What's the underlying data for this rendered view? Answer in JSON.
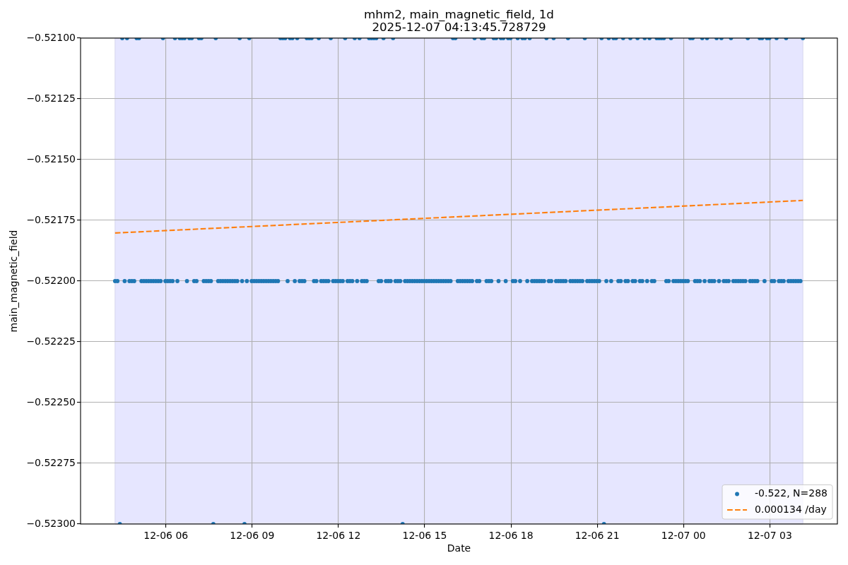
{
  "chart_data": {
    "type": "scatter",
    "title": "mhm2, main_magnetic_field, 1d",
    "subtitle": "2025-12-07 04:13:45.728729",
    "xlabel": "Date",
    "ylabel": "main_magnetic_field",
    "xlim": [
      "2025-12-06T03:02",
      "2025-12-07T05:21"
    ],
    "xticks": [
      {
        "value": "2025-12-06T06:00",
        "label": "12-06 06"
      },
      {
        "value": "2025-12-06T09:00",
        "label": "12-06 09"
      },
      {
        "value": "2025-12-06T12:00",
        "label": "12-06 12"
      },
      {
        "value": "2025-12-06T15:00",
        "label": "12-06 15"
      },
      {
        "value": "2025-12-06T18:00",
        "label": "12-06 18"
      },
      {
        "value": "2025-12-06T21:00",
        "label": "12-06 21"
      },
      {
        "value": "2025-12-07T00:00",
        "label": "12-07 00"
      },
      {
        "value": "2025-12-07T03:00",
        "label": "12-07 03"
      }
    ],
    "ylim": [
      -0.523,
      -0.521
    ],
    "yticks": [
      {
        "value": -0.523,
        "label": "−0.52300"
      },
      {
        "value": -0.52275,
        "label": "−0.52275"
      },
      {
        "value": -0.5225,
        "label": "−0.52250"
      },
      {
        "value": -0.52225,
        "label": "−0.52225"
      },
      {
        "value": -0.522,
        "label": "−0.52200"
      },
      {
        "value": -0.52175,
        "label": "−0.52175"
      },
      {
        "value": -0.5215,
        "label": "−0.52150"
      },
      {
        "value": -0.52125,
        "label": "−0.52125"
      },
      {
        "value": -0.521,
        "label": "−0.52100"
      }
    ],
    "grid": true,
    "legend": "bottom right",
    "bands": [
      {
        "axis": "x",
        "from": "2025-12-06T04:14",
        "to": "2025-12-07T04:09",
        "color": "#e6e6ff"
      }
    ],
    "series": [
      {
        "name": "-0.522, N=288",
        "color": "#1f77b4",
        "marker": "circle",
        "x": [
          "2025-12-06T04:14",
          "2025-12-06T04:19",
          "2025-12-06T04:24",
          "2025-12-06T04:29",
          "2025-12-06T04:34",
          "2025-12-06T04:39",
          "2025-12-06T04:44",
          "2025-12-06T04:49",
          "2025-12-06T04:54",
          "2025-12-06T04:59",
          "2025-12-06T05:04",
          "2025-12-06T05:09",
          "2025-12-06T05:14",
          "2025-12-06T05:19",
          "2025-12-06T05:24",
          "2025-12-06T05:29",
          "2025-12-06T05:34",
          "2025-12-06T05:39",
          "2025-12-06T05:44",
          "2025-12-06T05:49",
          "2025-12-06T05:54",
          "2025-12-06T05:59",
          "2025-12-06T06:04",
          "2025-12-06T06:09",
          "2025-12-06T06:14",
          "2025-12-06T06:19",
          "2025-12-06T06:24",
          "2025-12-06T06:29",
          "2025-12-06T06:34",
          "2025-12-06T06:39",
          "2025-12-06T06:44",
          "2025-12-06T06:49",
          "2025-12-06T06:54",
          "2025-12-06T06:59",
          "2025-12-06T07:04",
          "2025-12-06T07:09",
          "2025-12-06T07:14",
          "2025-12-06T07:19",
          "2025-12-06T07:24",
          "2025-12-06T07:29",
          "2025-12-06T07:34",
          "2025-12-06T07:39",
          "2025-12-06T07:44",
          "2025-12-06T07:49",
          "2025-12-06T07:54",
          "2025-12-06T07:59",
          "2025-12-06T08:04",
          "2025-12-06T08:09",
          "2025-12-06T08:14",
          "2025-12-06T08:19",
          "2025-12-06T08:24",
          "2025-12-06T08:29",
          "2025-12-06T08:34",
          "2025-12-06T08:39",
          "2025-12-06T08:44",
          "2025-12-06T08:49",
          "2025-12-06T08:54",
          "2025-12-06T08:59",
          "2025-12-06T09:04",
          "2025-12-06T09:09",
          "2025-12-06T09:14",
          "2025-12-06T09:19",
          "2025-12-06T09:24",
          "2025-12-06T09:29",
          "2025-12-06T09:34",
          "2025-12-06T09:39",
          "2025-12-06T09:44",
          "2025-12-06T09:49",
          "2025-12-06T09:54",
          "2025-12-06T09:59",
          "2025-12-06T10:04",
          "2025-12-06T10:09",
          "2025-12-06T10:14",
          "2025-12-06T10:19",
          "2025-12-06T10:24",
          "2025-12-06T10:29",
          "2025-12-06T10:34",
          "2025-12-06T10:39",
          "2025-12-06T10:44",
          "2025-12-06T10:49",
          "2025-12-06T10:54",
          "2025-12-06T10:59",
          "2025-12-06T11:04",
          "2025-12-06T11:09",
          "2025-12-06T11:14",
          "2025-12-06T11:19",
          "2025-12-06T11:24",
          "2025-12-06T11:29",
          "2025-12-06T11:34",
          "2025-12-06T11:39",
          "2025-12-06T11:44",
          "2025-12-06T11:49",
          "2025-12-06T11:54",
          "2025-12-06T11:59",
          "2025-12-06T12:04",
          "2025-12-06T12:09",
          "2025-12-06T12:14",
          "2025-12-06T12:19",
          "2025-12-06T12:24",
          "2025-12-06T12:29",
          "2025-12-06T12:34",
          "2025-12-06T12:39",
          "2025-12-06T12:44",
          "2025-12-06T12:49",
          "2025-12-06T12:54",
          "2025-12-06T12:59",
          "2025-12-06T13:04",
          "2025-12-06T13:09",
          "2025-12-06T13:14",
          "2025-12-06T13:19",
          "2025-12-06T13:24",
          "2025-12-06T13:29",
          "2025-12-06T13:34",
          "2025-12-06T13:39",
          "2025-12-06T13:44",
          "2025-12-06T13:49",
          "2025-12-06T13:54",
          "2025-12-06T13:59",
          "2025-12-06T14:04",
          "2025-12-06T14:09",
          "2025-12-06T14:14",
          "2025-12-06T14:19",
          "2025-12-06T14:24",
          "2025-12-06T14:29",
          "2025-12-06T14:34",
          "2025-12-06T14:39",
          "2025-12-06T14:44",
          "2025-12-06T14:49",
          "2025-12-06T14:54",
          "2025-12-06T14:59",
          "2025-12-06T15:04",
          "2025-12-06T15:09",
          "2025-12-06T15:14",
          "2025-12-06T15:19",
          "2025-12-06T15:24",
          "2025-12-06T15:29",
          "2025-12-06T15:34",
          "2025-12-06T15:39",
          "2025-12-06T15:44",
          "2025-12-06T15:49",
          "2025-12-06T15:54",
          "2025-12-06T15:59",
          "2025-12-06T16:04",
          "2025-12-06T16:09",
          "2025-12-06T16:14",
          "2025-12-06T16:19",
          "2025-12-06T16:24",
          "2025-12-06T16:29",
          "2025-12-06T16:34",
          "2025-12-06T16:39",
          "2025-12-06T16:44",
          "2025-12-06T16:49",
          "2025-12-06T16:54",
          "2025-12-06T16:59",
          "2025-12-06T17:04",
          "2025-12-06T17:09",
          "2025-12-06T17:14",
          "2025-12-06T17:19",
          "2025-12-06T17:24",
          "2025-12-06T17:29",
          "2025-12-06T17:34",
          "2025-12-06T17:39",
          "2025-12-06T17:44",
          "2025-12-06T17:49",
          "2025-12-06T17:54",
          "2025-12-06T17:59",
          "2025-12-06T18:04",
          "2025-12-06T18:09",
          "2025-12-06T18:14",
          "2025-12-06T18:19",
          "2025-12-06T18:24",
          "2025-12-06T18:29",
          "2025-12-06T18:34",
          "2025-12-06T18:39",
          "2025-12-06T18:44",
          "2025-12-06T18:49",
          "2025-12-06T18:54",
          "2025-12-06T18:59",
          "2025-12-06T19:04",
          "2025-12-06T19:09",
          "2025-12-06T19:14",
          "2025-12-06T19:19",
          "2025-12-06T19:24",
          "2025-12-06T19:29",
          "2025-12-06T19:34",
          "2025-12-06T19:39",
          "2025-12-06T19:44",
          "2025-12-06T19:49",
          "2025-12-06T19:54",
          "2025-12-06T19:59",
          "2025-12-06T20:04",
          "2025-12-06T20:09",
          "2025-12-06T20:14",
          "2025-12-06T20:19",
          "2025-12-06T20:24",
          "2025-12-06T20:29",
          "2025-12-06T20:34",
          "2025-12-06T20:39",
          "2025-12-06T20:44",
          "2025-12-06T20:49",
          "2025-12-06T20:54",
          "2025-12-06T20:59",
          "2025-12-06T21:04",
          "2025-12-06T21:09",
          "2025-12-06T21:14",
          "2025-12-06T21:19",
          "2025-12-06T21:24",
          "2025-12-06T21:29",
          "2025-12-06T21:34",
          "2025-12-06T21:39",
          "2025-12-06T21:44",
          "2025-12-06T21:49",
          "2025-12-06T21:54",
          "2025-12-06T21:59",
          "2025-12-06T22:04",
          "2025-12-06T22:09",
          "2025-12-06T22:14",
          "2025-12-06T22:19",
          "2025-12-06T22:24",
          "2025-12-06T22:29",
          "2025-12-06T22:34",
          "2025-12-06T22:39",
          "2025-12-06T22:44",
          "2025-12-06T22:49",
          "2025-12-06T22:54",
          "2025-12-06T22:59",
          "2025-12-06T23:04",
          "2025-12-06T23:09",
          "2025-12-06T23:14",
          "2025-12-06T23:19",
          "2025-12-06T23:24",
          "2025-12-06T23:29",
          "2025-12-06T23:34",
          "2025-12-06T23:39",
          "2025-12-06T23:44",
          "2025-12-06T23:49",
          "2025-12-06T23:54",
          "2025-12-06T23:59",
          "2025-12-07T00:04",
          "2025-12-07T00:09",
          "2025-12-07T00:14",
          "2025-12-07T00:19",
          "2025-12-07T00:24",
          "2025-12-07T00:29",
          "2025-12-07T00:34",
          "2025-12-07T00:39",
          "2025-12-07T00:44",
          "2025-12-07T00:49",
          "2025-12-07T00:54",
          "2025-12-07T00:59",
          "2025-12-07T01:04",
          "2025-12-07T01:09",
          "2025-12-07T01:14",
          "2025-12-07T01:19",
          "2025-12-07T01:24",
          "2025-12-07T01:29",
          "2025-12-07T01:34",
          "2025-12-07T01:39",
          "2025-12-07T01:44",
          "2025-12-07T01:49",
          "2025-12-07T01:54",
          "2025-12-07T01:59",
          "2025-12-07T02:04",
          "2025-12-07T02:09",
          "2025-12-07T02:14",
          "2025-12-07T02:19",
          "2025-12-07T02:24",
          "2025-12-07T02:29",
          "2025-12-07T02:34",
          "2025-12-07T02:39",
          "2025-12-07T02:44",
          "2025-12-07T02:49",
          "2025-12-07T02:54",
          "2025-12-07T02:59",
          "2025-12-07T03:04",
          "2025-12-07T03:09",
          "2025-12-07T03:14",
          "2025-12-07T03:19",
          "2025-12-07T03:24",
          "2025-12-07T03:29",
          "2025-12-07T03:34",
          "2025-12-07T03:39",
          "2025-12-07T03:44",
          "2025-12-07T03:49",
          "2025-12-07T03:54",
          "2025-12-07T03:59",
          "2025-12-07T04:04",
          "2025-12-07T04:09"
        ],
        "values": [
          -0.522,
          -0.522,
          -0.523,
          -0.521,
          -0.522,
          -0.521,
          -0.522,
          -0.522,
          -0.522,
          -0.521,
          -0.521,
          -0.522,
          -0.522,
          -0.522,
          -0.522,
          -0.522,
          -0.522,
          -0.522,
          -0.522,
          -0.522,
          -0.521,
          -0.522,
          -0.522,
          -0.522,
          -0.522,
          -0.521,
          -0.522,
          -0.521,
          -0.521,
          -0.521,
          -0.522,
          -0.521,
          -0.521,
          -0.522,
          -0.522,
          -0.521,
          -0.521,
          -0.522,
          -0.522,
          -0.522,
          -0.522,
          -0.523,
          -0.521,
          -0.522,
          -0.522,
          -0.522,
          -0.522,
          -0.522,
          -0.522,
          -0.522,
          -0.522,
          -0.522,
          -0.521,
          -0.522,
          -0.523,
          -0.522,
          -0.521,
          -0.522,
          -0.522,
          -0.522,
          -0.522,
          -0.522,
          -0.522,
          -0.522,
          -0.522,
          -0.522,
          -0.522,
          -0.522,
          -0.522,
          -0.521,
          -0.521,
          -0.521,
          -0.522,
          -0.521,
          -0.521,
          -0.522,
          -0.521,
          -0.522,
          -0.522,
          -0.522,
          -0.521,
          -0.521,
          -0.521,
          -0.522,
          -0.522,
          -0.521,
          -0.522,
          -0.522,
          -0.522,
          -0.522,
          -0.521,
          -0.522,
          -0.522,
          -0.522,
          -0.522,
          -0.522,
          -0.521,
          -0.522,
          -0.522,
          -0.522,
          -0.521,
          -0.522,
          -0.521,
          -0.522,
          -0.522,
          -0.522,
          -0.521,
          -0.521,
          -0.521,
          -0.521,
          -0.522,
          -0.522,
          -0.521,
          -0.522,
          -0.522,
          -0.522,
          -0.521,
          -0.522,
          -0.522,
          -0.522,
          -0.523,
          -0.522,
          -0.522,
          -0.522,
          -0.522,
          -0.522,
          -0.522,
          -0.522,
          -0.522,
          -0.522,
          -0.522,
          -0.522,
          -0.522,
          -0.522,
          -0.522,
          -0.522,
          -0.522,
          -0.522,
          -0.522,
          -0.522,
          -0.522,
          -0.521,
          -0.521,
          -0.522,
          -0.522,
          -0.522,
          -0.522,
          -0.522,
          -0.522,
          -0.522,
          -0.521,
          -0.522,
          -0.522,
          -0.521,
          -0.521,
          -0.522,
          -0.522,
          -0.522,
          -0.521,
          -0.521,
          -0.522,
          -0.521,
          -0.521,
          -0.522,
          -0.521,
          -0.521,
          -0.522,
          -0.522,
          -0.521,
          -0.522,
          -0.521,
          -0.521,
          -0.522,
          -0.521,
          -0.522,
          -0.522,
          -0.522,
          -0.522,
          -0.522,
          -0.522,
          -0.521,
          -0.522,
          -0.522,
          -0.521,
          -0.522,
          -0.522,
          -0.522,
          -0.522,
          -0.522,
          -0.521,
          -0.522,
          -0.522,
          -0.522,
          -0.522,
          -0.522,
          -0.522,
          -0.521,
          -0.522,
          -0.522,
          -0.522,
          -0.522,
          -0.522,
          -0.522,
          -0.521,
          -0.523,
          -0.522,
          -0.521,
          -0.522,
          -0.521,
          -0.521,
          -0.522,
          -0.522,
          -0.521,
          -0.522,
          -0.522,
          -0.521,
          -0.522,
          -0.522,
          -0.521,
          -0.522,
          -0.522,
          -0.521,
          -0.522,
          -0.521,
          -0.522,
          -0.522,
          -0.521,
          -0.521,
          -0.521,
          -0.521,
          -0.522,
          -0.522,
          -0.521,
          -0.522,
          -0.522,
          -0.522,
          -0.522,
          -0.522,
          -0.522,
          -0.522,
          -0.521,
          -0.521,
          -0.522,
          -0.522,
          -0.522,
          -0.521,
          -0.522,
          -0.521,
          -0.522,
          -0.522,
          -0.522,
          -0.521,
          -0.522,
          -0.521,
          -0.522,
          -0.522,
          -0.522,
          -0.521,
          -0.522,
          -0.522,
          -0.522,
          -0.522,
          -0.522,
          -0.522,
          -0.521,
          -0.522,
          -0.522,
          -0.522,
          -0.522,
          -0.521,
          -0.521,
          -0.522,
          -0.521,
          -0.521,
          -0.522,
          -0.522,
          -0.521,
          -0.522,
          -0.522,
          -0.522,
          -0.521,
          -0.522,
          -0.522,
          -0.522,
          -0.522,
          -0.522,
          -0.522,
          -0.521
        ]
      },
      {
        "name": "0.000134 /day",
        "type": "line",
        "color": "#ff7f0e",
        "marker": "none",
        "line_style": "dashed",
        "x": [
          "2025-12-06T04:14",
          "2025-12-07T04:09"
        ],
        "values": [
          -0.521802,
          -0.521668
        ]
      }
    ]
  }
}
